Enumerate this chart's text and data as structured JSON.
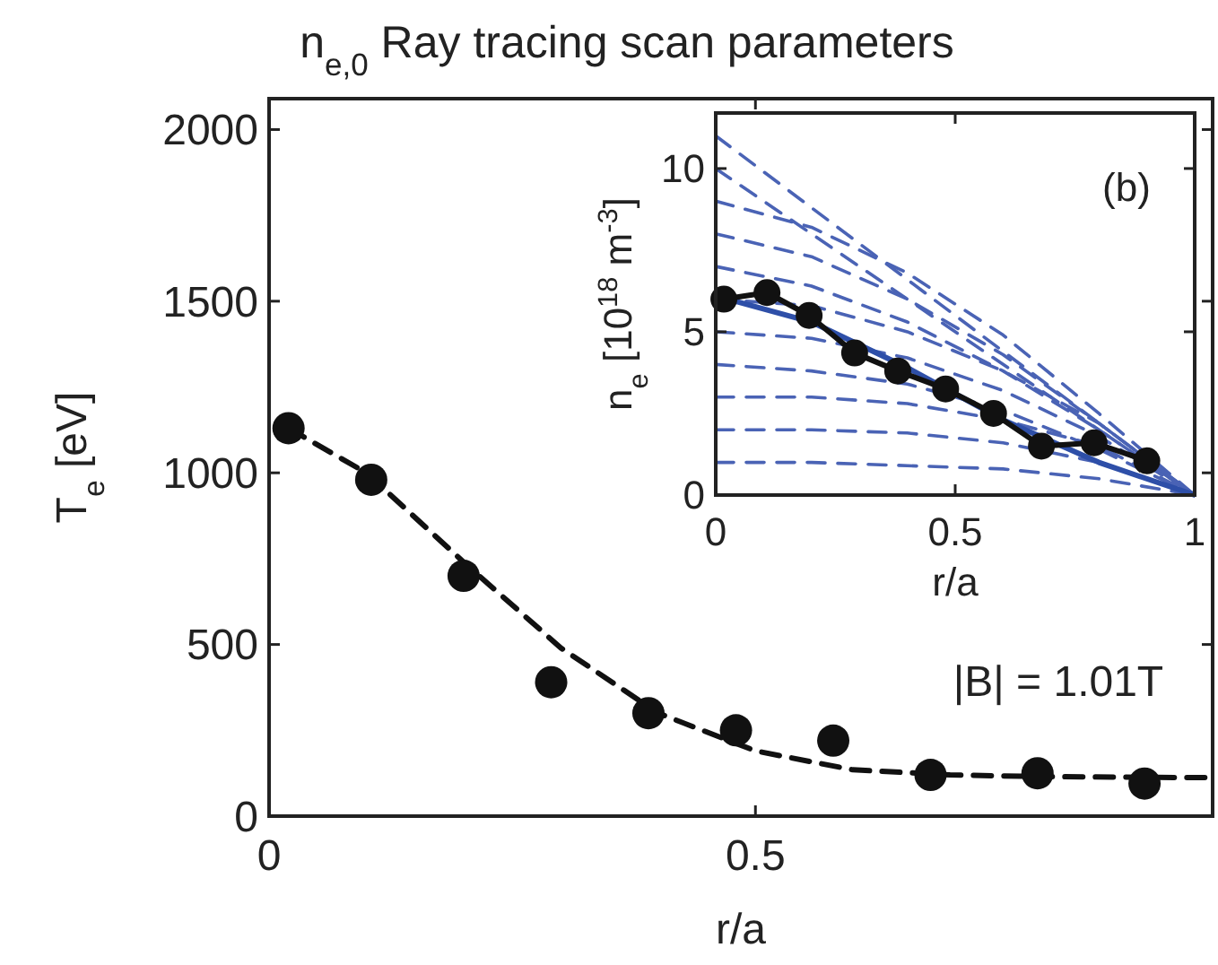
{
  "chart_data": [
    {
      "type": "scatter",
      "title": "n$_{e,0}$ Ray tracing scan parameters",
      "xlabel": "r/a",
      "ylabel": "T$_{e}$ [eV]",
      "xlim": [
        0,
        0.97
      ],
      "ylim": [
        0,
        2090
      ],
      "xticks": [
        0,
        0.5
      ],
      "yticks": [
        0,
        500,
        1000,
        1500,
        2000
      ],
      "annotations": [
        "|B| = 1.01T"
      ],
      "series": [
        {
          "type": "line",
          "color": "#111111",
          "line_style": "dashed",
          "marker": "none",
          "x": [
            0.02,
            0.1,
            0.2,
            0.3,
            0.4,
            0.5,
            0.6,
            0.7,
            0.8,
            0.9,
            0.97
          ],
          "values": [
            1130,
            1000,
            740,
            490,
            300,
            190,
            135,
            120,
            115,
            113,
            112
          ]
        },
        {
          "color": "#111111",
          "marker": "circle",
          "x": [
            0.02,
            0.105,
            0.2,
            0.29,
            0.39,
            0.48,
            0.58,
            0.68,
            0.79,
            0.9
          ],
          "values": [
            1130,
            980,
            700,
            390,
            300,
            250,
            220,
            120,
            125,
            95
          ]
        }
      ]
    },
    {
      "type": "line",
      "xlabel": "r/a",
      "ylabel": "n$_{e}$ [10$^{18}$ m$^{-3}$]",
      "xlim": [
        0,
        1
      ],
      "ylim": [
        0,
        11.7
      ],
      "xticks": [
        0,
        0.5,
        1
      ],
      "yticks": [
        0,
        5,
        10
      ],
      "annotations": [
        "(b)"
      ],
      "series": [
        {
          "type": "line",
          "color": "#4a63b5",
          "line_style": "dashed",
          "x": [
            0,
            0.2,
            0.4,
            0.6,
            0.8,
            1
          ],
          "values": [
            11,
            8.8,
            6.6,
            4.4,
            2.2,
            0
          ]
        },
        {
          "type": "line",
          "color": "#4a63b5",
          "line_style": "dashed",
          "x": [
            0,
            0.2,
            0.4,
            0.6,
            0.8,
            1
          ],
          "values": [
            10,
            8,
            6,
            4,
            2,
            0
          ]
        },
        {
          "type": "line",
          "color": "#4a63b5",
          "line_style": "dashed",
          "x": [
            0,
            0.2,
            0.4,
            0.6,
            0.8,
            1
          ],
          "values": [
            9,
            8.2,
            6.8,
            4.9,
            2.5,
            0
          ]
        },
        {
          "type": "line",
          "color": "#4a63b5",
          "line_style": "dashed",
          "x": [
            0,
            0.2,
            0.4,
            0.6,
            0.8,
            1
          ],
          "values": [
            8,
            7.3,
            6,
            4.3,
            2.2,
            0
          ]
        },
        {
          "type": "line",
          "color": "#4a63b5",
          "line_style": "dashed",
          "x": [
            0,
            0.2,
            0.4,
            0.6,
            0.8,
            1
          ],
          "values": [
            7,
            6.4,
            5.3,
            3.8,
            2,
            0
          ]
        },
        {
          "type": "line",
          "color": "#4a63b5",
          "line_style": "dashed",
          "x": [
            0,
            0.2,
            0.4,
            0.6,
            0.8,
            1
          ],
          "values": [
            6,
            5.8,
            5,
            3.8,
            2.2,
            0
          ]
        },
        {
          "type": "line",
          "color": "#4a63b5",
          "line_style": "dashed",
          "x": [
            0,
            0.2,
            0.4,
            0.6,
            0.8,
            1
          ],
          "values": [
            5,
            4.8,
            4.2,
            3.2,
            1.8,
            0
          ]
        },
        {
          "type": "line",
          "color": "#4a63b5",
          "line_style": "dashed",
          "x": [
            0,
            0.2,
            0.4,
            0.6,
            0.8,
            1
          ],
          "values": [
            4,
            3.8,
            3.4,
            2.6,
            1.4,
            0
          ]
        },
        {
          "type": "line",
          "color": "#4a63b5",
          "line_style": "dashed",
          "x": [
            0,
            0.2,
            0.4,
            0.6,
            0.8,
            1
          ],
          "values": [
            3,
            3,
            2.8,
            2.3,
            1.5,
            0
          ]
        },
        {
          "type": "line",
          "color": "#4a63b5",
          "line_style": "dashed",
          "x": [
            0,
            0.2,
            0.4,
            0.6,
            0.8,
            1
          ],
          "values": [
            2,
            2,
            1.9,
            1.6,
            1,
            0
          ]
        },
        {
          "type": "line",
          "color": "#4a63b5",
          "line_style": "dashed",
          "x": [
            0,
            0.2,
            0.4,
            0.6,
            0.8,
            1
          ],
          "values": [
            1,
            1,
            0.9,
            0.8,
            0.5,
            0
          ]
        },
        {
          "type": "line",
          "color": "#2e4fa8",
          "line_style": "solid",
          "x": [
            0,
            0.2,
            0.4,
            0.6,
            0.8,
            1
          ],
          "values": [
            6.1,
            5.3,
            3.9,
            2.3,
            1,
            0
          ]
        },
        {
          "color": "#111111",
          "line_style": "solid",
          "marker": "circle",
          "x": [
            0.017,
            0.107,
            0.195,
            0.29,
            0.38,
            0.48,
            0.58,
            0.68,
            0.79,
            0.9
          ],
          "values": [
            6,
            6.2,
            5.5,
            4.35,
            3.8,
            3.25,
            2.5,
            1.5,
            1.6,
            1.05
          ]
        }
      ]
    }
  ]
}
